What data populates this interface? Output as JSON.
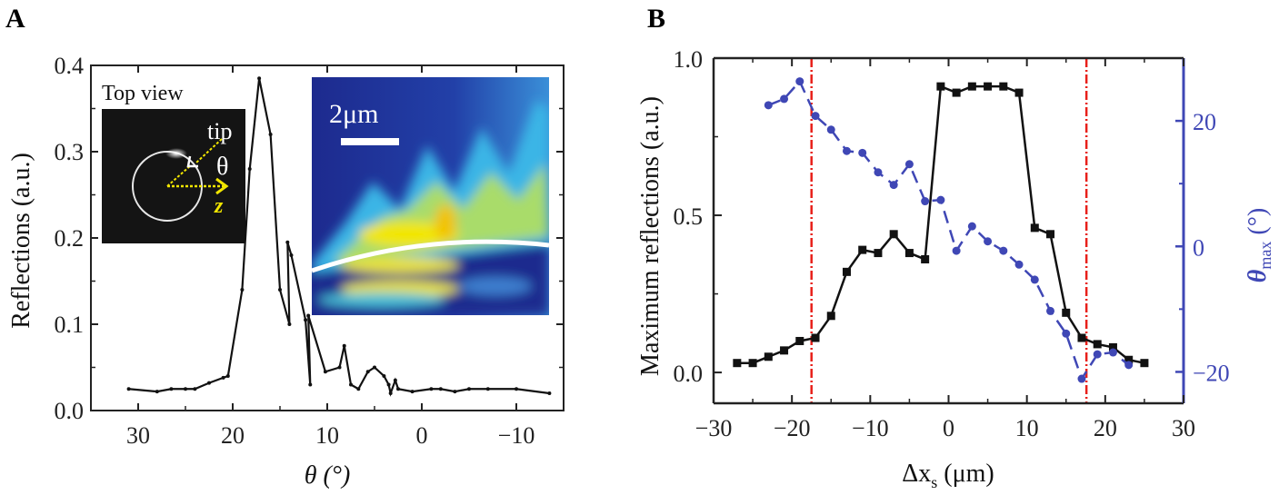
{
  "panels": [
    {
      "letter": "A"
    },
    {
      "letter": "B"
    }
  ],
  "colors": {
    "black": "#111111",
    "blue": "#3f47b5",
    "red": "#e8201a",
    "yellow": "#f2e600"
  },
  "chart_data": [
    {
      "type": "line",
      "panel": "A",
      "xlabel": "θ (°)",
      "ylabel": "Reflections (a.u.)",
      "xlim": [
        35,
        -15
      ],
      "ylim": [
        0,
        0.4
      ],
      "x_reversed": true,
      "xticks": [
        "30",
        "20",
        "10",
        "0",
        "−10"
      ],
      "xtick_values": [
        30,
        20,
        10,
        0,
        -10
      ],
      "yticks": [
        "0.0",
        "0.1",
        "0.2",
        "0.3",
        "0.4"
      ],
      "ytick_values": [
        0,
        0.1,
        0.2,
        0.3,
        0.4
      ],
      "grid": false,
      "series": [
        {
          "color": "#111111",
          "x": [
            31,
            28,
            26.5,
            25,
            24,
            22.5,
            21,
            20.5,
            19,
            18.2,
            17.2,
            16,
            15,
            14,
            14.2,
            13.8,
            12.3,
            11.8,
            12,
            10.2,
            8.7,
            8.2,
            7.5,
            6.7,
            5.7,
            5,
            4,
            3.5,
            3.3,
            2.8,
            2.5,
            1,
            -1,
            -2,
            -3.5,
            -5,
            -7,
            -10,
            -13.5
          ],
          "y": [
            0.025,
            0.022,
            0.025,
            0.025,
            0.025,
            0.032,
            0.038,
            0.04,
            0.14,
            0.28,
            0.385,
            0.32,
            0.14,
            0.1,
            0.195,
            0.18,
            0.105,
            0.03,
            0.11,
            0.045,
            0.05,
            0.075,
            0.03,
            0.025,
            0.045,
            0.05,
            0.04,
            0.03,
            0.02,
            0.035,
            0.025,
            0.022,
            0.025,
            0.025,
            0.022,
            0.025,
            0.025,
            0.025,
            0.02
          ]
        }
      ],
      "insets": {
        "top_view_label": "Top view",
        "tip_label": "tip",
        "theta_label": "θ",
        "z_label": "z",
        "scale_bar_label": "2μm"
      }
    },
    {
      "type": "line",
      "panel": "B",
      "xlabel": "Δx",
      "xlabel_sub": "s",
      "xlabel_unit": " (μm)",
      "ylabel": "Maximum reflections (a.u.)",
      "ylabel_right": "θ",
      "ylabel_right_sub": "max",
      "ylabel_right_unit": " (°)",
      "xlim": [
        -30,
        30
      ],
      "ylim": [
        -0.098,
        1.0
      ],
      "ylim_right": [
        -25,
        30
      ],
      "xticks": [
        "−30",
        "−20",
        "−10",
        "0",
        "10",
        "20",
        "30"
      ],
      "xtick_values": [
        -30,
        -20,
        -10,
        0,
        10,
        20,
        30
      ],
      "yticks": [
        "0.0",
        "0.5",
        "1.0"
      ],
      "ytick_values": [
        0,
        0.5,
        1.0
      ],
      "yticks_right": [
        "20",
        "0",
        "−20"
      ],
      "ytick_right_values": [
        20,
        0,
        -20
      ],
      "grid": false,
      "vlines": [
        -17.5,
        17.6
      ],
      "series": [
        {
          "axis": "left",
          "color": "#111111",
          "marker": "square",
          "x": [
            -27,
            -25,
            -23,
            -21,
            -19,
            -17,
            -15,
            -13,
            -11,
            -9,
            -7,
            -5,
            -3,
            -1,
            1,
            3,
            5,
            7,
            9,
            11,
            13,
            15,
            17,
            19,
            21,
            23,
            25
          ],
          "y": [
            0.03,
            0.03,
            0.05,
            0.07,
            0.1,
            0.11,
            0.18,
            0.32,
            0.39,
            0.38,
            0.44,
            0.38,
            0.36,
            0.91,
            0.89,
            0.91,
            0.91,
            0.91,
            0.89,
            0.46,
            0.44,
            0.19,
            0.11,
            0.09,
            0.08,
            0.04,
            0.03
          ]
        },
        {
          "axis": "right",
          "color": "#3f47b5",
          "marker": "circle",
          "linestyle": "dashed",
          "x": [
            -23,
            -21,
            -19,
            -17,
            -15,
            -13,
            -11,
            -9,
            -7,
            -5,
            -3,
            -1,
            1,
            3,
            5,
            7,
            9,
            11,
            13,
            15,
            17,
            19,
            21,
            23
          ],
          "y": [
            22.5,
            23.5,
            26.3,
            20.8,
            18.6,
            15.2,
            14.9,
            11.8,
            9.8,
            13.1,
            7.2,
            7.4,
            -0.7,
            3.2,
            0.8,
            -0.7,
            -2.9,
            -5.3,
            -10.3,
            -13.9,
            -21.1,
            -17.2,
            -16.9,
            -18.9
          ]
        }
      ]
    }
  ]
}
